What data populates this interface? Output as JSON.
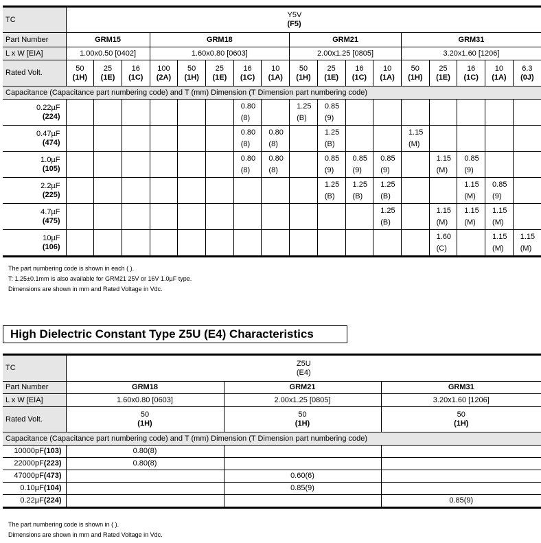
{
  "y5v": {
    "tc_label": "TC",
    "tc_value": "Y5V",
    "tc_code": "(F5)",
    "part_label": "Part Number",
    "size_label": "L x W [EIA]",
    "volt_label": "Rated Volt.",
    "groups": [
      {
        "part": "GRM15",
        "size": "1.00x0.50 [0402]",
        "span": 3
      },
      {
        "part": "GRM18",
        "size": "1.60x0.80 [0603]",
        "span": 5
      },
      {
        "part": "GRM21",
        "size": "2.00x1.25 [0805]",
        "span": 4
      },
      {
        "part": "GRM31",
        "size": "3.20x1.60 [1206]",
        "span": 5
      }
    ],
    "voltages": [
      [
        "50",
        "(1H)"
      ],
      [
        "25",
        "(1E)"
      ],
      [
        "16",
        "(1C)"
      ],
      [
        "100",
        "(2A)"
      ],
      [
        "50",
        "(1H)"
      ],
      [
        "25",
        "(1E)"
      ],
      [
        "16",
        "(1C)"
      ],
      [
        "10",
        "(1A)"
      ],
      [
        "50",
        "(1H)"
      ],
      [
        "25",
        "(1E)"
      ],
      [
        "16",
        "(1C)"
      ],
      [
        "10",
        "(1A)"
      ],
      [
        "50",
        "(1H)"
      ],
      [
        "25",
        "(1E)"
      ],
      [
        "16",
        "(1C)"
      ],
      [
        "10",
        "(1A)"
      ],
      [
        "6.3",
        "(0J)"
      ]
    ],
    "cap_header": "Capacitance (Capacitance part numbering code) and T (mm) Dimension (T Dimension part numbering code)",
    "rows": [
      {
        "cap": "0.22µF",
        "code": "(224)",
        "cells": [
          "",
          "",
          "",
          "",
          "",
          "",
          "0.80\n(8)",
          "",
          "1.25\n(B)",
          "0.85\n(9)",
          "",
          "",
          "",
          "",
          "",
          "",
          ""
        ]
      },
      {
        "cap": "0.47µF",
        "code": "(474)",
        "cells": [
          "",
          "",
          "",
          "",
          "",
          "",
          "0.80\n(8)",
          "0.80\n(8)",
          "",
          "1.25\n(B)",
          "",
          "",
          "1.15\n(M)",
          "",
          "",
          "",
          ""
        ]
      },
      {
        "cap": "1.0µF",
        "code": "(105)",
        "cells": [
          "",
          "",
          "",
          "",
          "",
          "",
          "0.80\n(8)",
          "0.80\n(8)",
          "",
          "0.85\n(9)",
          "0.85\n(9)",
          "0.85\n(9)",
          "",
          "1.15\n(M)",
          "0.85\n(9)",
          "",
          ""
        ]
      },
      {
        "cap": "2.2µF",
        "code": "(225)",
        "cells": [
          "",
          "",
          "",
          "",
          "",
          "",
          "",
          "",
          "",
          "1.25\n(B)",
          "1.25\n(B)",
          "1.25\n(B)",
          "",
          "",
          "1.15\n(M)",
          "0.85\n(9)",
          ""
        ]
      },
      {
        "cap": "4.7µF",
        "code": "(475)",
        "cells": [
          "",
          "",
          "",
          "",
          "",
          "",
          "",
          "",
          "",
          "",
          "",
          "1.25\n(B)",
          "",
          "1.15\n(M)",
          "1.15\n(M)",
          "1.15\n(M)",
          ""
        ]
      },
      {
        "cap": "10µF",
        "code": "(106)",
        "cells": [
          "",
          "",
          "",
          "",
          "",
          "",
          "",
          "",
          "",
          "",
          "",
          "",
          "",
          "1.60\n(C)",
          "",
          "1.15\n(M)",
          "1.15\n(M)"
        ]
      }
    ],
    "notes": [
      "The part numbering code is shown in each ( ).",
      "T: 1.25±0.1mm is also available for GRM21 25V or 16V 1.0µF type.",
      "Dimensions are shown in mm and Rated Voltage in Vdc."
    ]
  },
  "z5u": {
    "section_title": "High Dielectric Constant Type Z5U (E4) Characteristics",
    "tc_label": "TC",
    "tc_value": "Z5U",
    "tc_code": "(E4)",
    "part_label": "Part Number",
    "size_label": "L x W [EIA]",
    "volt_label": "Rated Volt.",
    "groups": [
      {
        "part": "GRM18",
        "size": "1.60x0.80 [0603]",
        "volt": "50",
        "volt_code": "(1H)"
      },
      {
        "part": "GRM21",
        "size": "2.00x1.25 [0805]",
        "volt": "50",
        "volt_code": "(1H)"
      },
      {
        "part": "GRM31",
        "size": "3.20x1.60 [1206]",
        "volt": "50",
        "volt_code": "(1H)"
      }
    ],
    "cap_header": "Capacitance (Capacitance part numbering code) and T (mm) Dimension (T Dimension part numbering code)",
    "rows": [
      {
        "cap": "10000pF",
        "code": "(103)",
        "cells": [
          "0.80(8)",
          "",
          ""
        ]
      },
      {
        "cap": "22000pF",
        "code": "(223)",
        "cells": [
          "0.80(8)",
          "",
          ""
        ]
      },
      {
        "cap": "47000pF",
        "code": "(473)",
        "cells": [
          "",
          "0.60(6)",
          ""
        ]
      },
      {
        "cap": "0.10µF",
        "code": "(104)",
        "cells": [
          "",
          "0.85(9)",
          ""
        ]
      },
      {
        "cap": "0.22µF",
        "code": "(224)",
        "cells": [
          "",
          "",
          "0.85(9)"
        ]
      }
    ],
    "notes": [
      "The part numbering code is shown in  ( ).",
      "Dimensions are shown in mm and Rated Voltage in Vdc."
    ]
  }
}
